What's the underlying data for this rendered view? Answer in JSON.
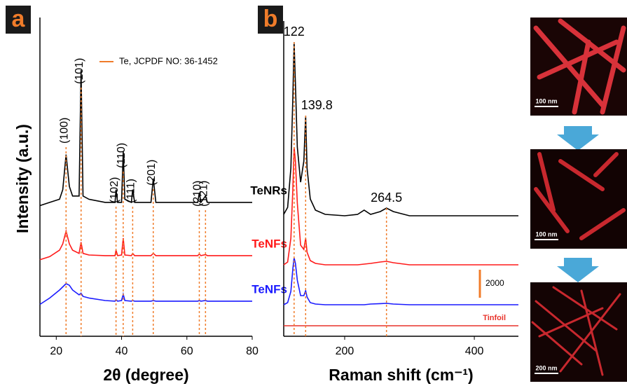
{
  "chart_data": [
    {
      "type": "line",
      "panel_label": "a",
      "xlabel": "2θ (degree)",
      "ylabel": "Intensity (a.u.)",
      "xlim": [
        15,
        80
      ],
      "xticks": [
        20,
        40,
        60,
        80
      ],
      "ylim": [
        0,
        100
      ],
      "x": [
        15,
        18,
        21,
        22,
        23,
        24,
        25,
        27,
        27.6,
        28.2,
        30,
        35,
        38,
        38.3,
        38.8,
        40,
        40.5,
        41,
        43,
        43.4,
        44,
        49,
        49.7,
        50.5,
        55,
        60,
        63.3,
        63.8,
        64.3,
        65.7,
        66.3,
        70,
        75,
        80
      ],
      "series": [
        {
          "name": "TeNRs",
          "color": "#000000",
          "values": [
            41,
            42,
            43,
            46,
            57,
            47,
            44,
            44,
            83.5,
            44,
            43,
            42,
            42,
            46,
            42,
            42,
            58,
            43,
            42,
            46,
            42,
            42,
            49.5,
            42,
            42,
            42,
            42,
            45,
            42,
            44,
            42,
            42,
            42,
            42
          ]
        },
        {
          "name": "TeNFs",
          "color": "#ff1a1a",
          "values": [
            24,
            25,
            27,
            29,
            33,
            29,
            27,
            26,
            29.5,
            26,
            25.5,
            25.3,
            25.3,
            27,
            25.3,
            25.5,
            30.8,
            25.5,
            25.3,
            26,
            25.3,
            25.3,
            26,
            25.3,
            25.3,
            25.3,
            25.3,
            25.8,
            25.3,
            25.6,
            25.3,
            25.3,
            25.3,
            25.3
          ]
        },
        {
          "name": "TeNFs",
          "color": "#1a1aff",
          "values": [
            10,
            12,
            14.5,
            15.5,
            16.5,
            16,
            14.5,
            13,
            13.5,
            12.5,
            12,
            11.2,
            11,
            11.5,
            11,
            11.2,
            13.2,
            11.2,
            11,
            11.2,
            11,
            11,
            11.2,
            11,
            11,
            11,
            11,
            11.2,
            11,
            11.2,
            11,
            11,
            11,
            11
          ]
        }
      ],
      "reference_legend": "Te, JCPDF NO: 36-1452",
      "reference_color": "#f07c2a",
      "reference_lines": [
        {
          "position": 23,
          "label": "(100)"
        },
        {
          "position": 27.6,
          "label": "(101)"
        },
        {
          "position": 38.3,
          "label": "(102)"
        },
        {
          "position": 40.5,
          "label": "(110)"
        },
        {
          "position": 43.4,
          "label": "(111)"
        },
        {
          "position": 49.7,
          "label": "(201)"
        },
        {
          "position": 63.8,
          "label": "(210)"
        },
        {
          "position": 65.7,
          "label": "(121)"
        }
      ]
    },
    {
      "type": "line",
      "panel_label": "b",
      "xlabel": "Raman shift (cm⁻¹)",
      "xlim": [
        106,
        468
      ],
      "xticks": [
        200,
        400
      ],
      "ylim": [
        0,
        22500
      ],
      "x": [
        106,
        112,
        117,
        120,
        122,
        124,
        127,
        132,
        137,
        139.8,
        142,
        147,
        155,
        170,
        200,
        220,
        230,
        240,
        255,
        264.5,
        275,
        300,
        350,
        400,
        468
      ],
      "series": [
        {
          "color": "#000000",
          "values": [
            8700,
            9200,
            12000,
            17000,
            21000,
            18000,
            13500,
            11000,
            12500,
            15750,
            12000,
            9800,
            9000,
            8700,
            8600,
            8700,
            9000,
            8700,
            8900,
            9150,
            8900,
            8600,
            8600,
            8600,
            8600
          ]
        },
        {
          "color": "#ff1a1a",
          "values": [
            5100,
            5300,
            7000,
            10500,
            13500,
            12500,
            9500,
            6500,
            6200,
            7000,
            6000,
            5400,
            5200,
            5100,
            5100,
            5100,
            5150,
            5200,
            5300,
            5350,
            5250,
            5100,
            5100,
            5100,
            5100
          ]
        },
        {
          "color": "#1a1aff",
          "values": [
            2250,
            2400,
            3200,
            4800,
            5600,
            5200,
            4000,
            2900,
            2900,
            3250,
            2800,
            2400,
            2300,
            2250,
            2250,
            2250,
            2250,
            2300,
            2330,
            2350,
            2300,
            2250,
            2250,
            2250,
            2250
          ]
        },
        {
          "name": "Tinfoil",
          "color": "#e8322a",
          "values": [
            750,
            750,
            750,
            750,
            750,
            750,
            750,
            750,
            750,
            750,
            750,
            750,
            750,
            750,
            750,
            750,
            750,
            750,
            750,
            750,
            750,
            750,
            750,
            750,
            750
          ]
        }
      ],
      "reference_color": "#f07c2a",
      "reference_lines": [
        {
          "position": 122,
          "label": "122"
        },
        {
          "position": 139.8,
          "label": "139.8"
        },
        {
          "position": 264.5,
          "label": "264.5"
        }
      ],
      "scale_bar": 2000,
      "scale_bar_color": "#f07c2a"
    }
  ],
  "sem_images": [
    {
      "scale_bar": "100 nm"
    },
    {
      "scale_bar": "100 nm"
    },
    {
      "scale_bar": "200 nm"
    }
  ]
}
